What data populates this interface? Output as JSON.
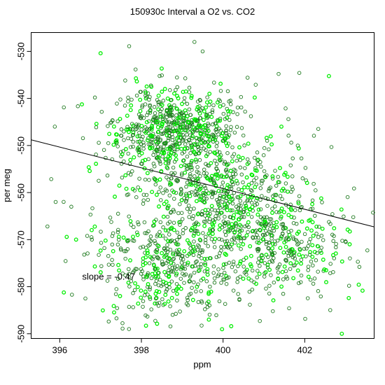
{
  "chart_data": {
    "type": "scatter",
    "title": "150930c   Interval a O2 vs. CO2",
    "xlabel": "ppm",
    "ylabel": "per meg",
    "xlim": [
      395.3,
      403.7
    ],
    "ylim": [
      -591,
      -526
    ],
    "x_ticks": [
      396,
      398,
      400,
      402
    ],
    "y_ticks": [
      -530,
      -540,
      -550,
      -560,
      -570,
      -580,
      -590
    ],
    "x_tick_labels": [
      "396",
      "398",
      "400",
      "402"
    ],
    "y_tick_labels": [
      "-530",
      "-540",
      "-550",
      "-560",
      "-570",
      "-580",
      "-590"
    ],
    "grid": false,
    "marker": "open-circle",
    "colors": {
      "dark_points": "#1f7a1f",
      "bright_points": "#00ee00",
      "fit_line": "#000000"
    },
    "fit_line": {
      "x": [
        395.3,
        403.7
      ],
      "y": [
        -548.8,
        -567.3
      ]
    },
    "annotation": {
      "text": "slope = -0.47",
      "x": 396.55,
      "y": -578.5
    },
    "clusters": [
      {
        "name": "upper-dense",
        "center_x": 398.8,
        "center_y": -547,
        "spread_x": 0.75,
        "spread_y": 4.5,
        "count": 650
      },
      {
        "name": "middle-band",
        "center_x": 400.0,
        "center_y": -561,
        "spread_x": 0.9,
        "spread_y": 5.5,
        "count": 420
      },
      {
        "name": "lower-left",
        "center_x": 398.6,
        "center_y": -576,
        "spread_x": 0.8,
        "spread_y": 5.5,
        "count": 380
      },
      {
        "name": "lower-right",
        "center_x": 401.3,
        "center_y": -571,
        "spread_x": 0.9,
        "spread_y": 5.0,
        "count": 330
      },
      {
        "name": "wide-scatter",
        "center_x": 399.5,
        "center_y": -562,
        "spread_x": 1.6,
        "spread_y": 11,
        "count": 250
      }
    ],
    "outliers": [
      {
        "x": 395.7,
        "y": -567.2
      },
      {
        "x": 396.1,
        "y": -541.9
      },
      {
        "x": 395.9,
        "y": -562.0
      },
      {
        "x": 397.0,
        "y": -530.4
      },
      {
        "x": 397.7,
        "y": -528.9
      },
      {
        "x": 399.3,
        "y": -528.0
      },
      {
        "x": 399.5,
        "y": -530.0
      },
      {
        "x": 403.3,
        "y": -574.7
      },
      {
        "x": 402.9,
        "y": -563.6
      },
      {
        "x": 400.6,
        "y": -535.6
      },
      {
        "x": 400.9,
        "y": -587.3
      },
      {
        "x": 400.2,
        "y": -588.4
      },
      {
        "x": 397.2,
        "y": -587.4
      },
      {
        "x": 396.3,
        "y": -581.7
      },
      {
        "x": 396.4,
        "y": -570.0
      },
      {
        "x": 396.6,
        "y": -573.2
      },
      {
        "x": 403.1,
        "y": -571.0
      },
      {
        "x": 402.7,
        "y": -570.3
      },
      {
        "x": 401.6,
        "y": -544.4
      },
      {
        "x": 396.9,
        "y": -545.4
      },
      {
        "x": 397.4,
        "y": -541.1
      },
      {
        "x": 400.8,
        "y": -537.1
      },
      {
        "x": 398.5,
        "y": -535.1
      },
      {
        "x": 400.4,
        "y": -582.8
      }
    ]
  }
}
